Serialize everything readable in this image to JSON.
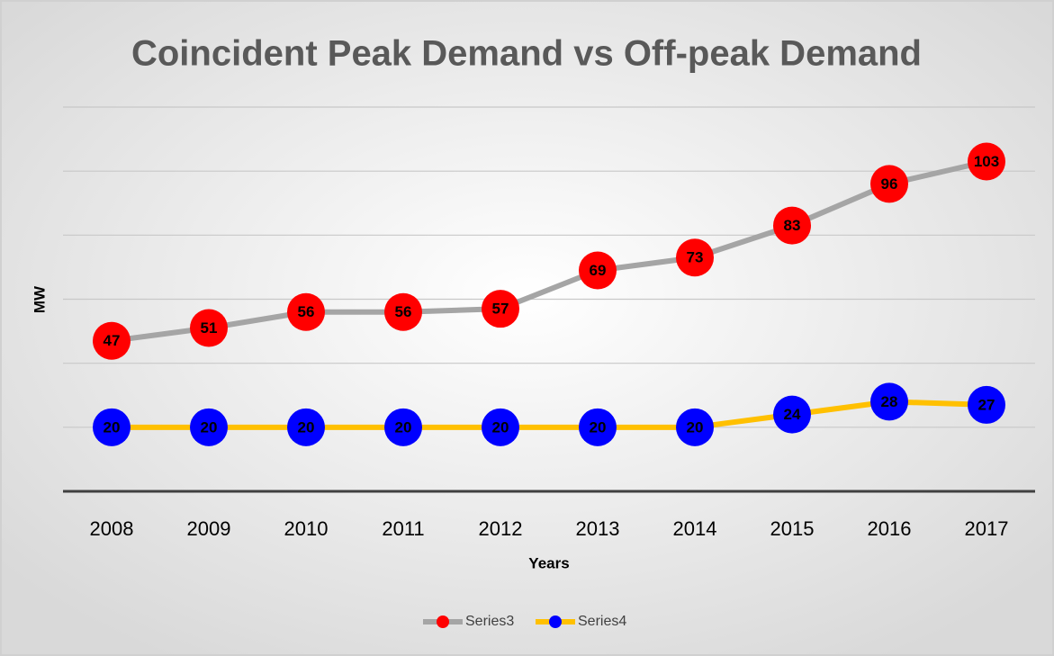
{
  "chart_data": {
    "type": "line",
    "title": "Coincident Peak Demand vs Off-peak Demand",
    "x_label": "Years",
    "y_label": "MW",
    "categories": [
      "2008",
      "2009",
      "2010",
      "2011",
      "2012",
      "2013",
      "2014",
      "2015",
      "2016",
      "2017"
    ],
    "series": [
      {
        "name": "Series3",
        "color": "#a5a5a5",
        "marker_color": "#ff0000",
        "values": [
          47,
          51,
          56,
          56,
          57,
          69,
          73,
          83,
          96,
          103
        ]
      },
      {
        "name": "Series4",
        "color": "#ffc000",
        "marker_color": "#0000ff",
        "values": [
          20,
          20,
          20,
          20,
          20,
          20,
          20,
          24,
          28,
          27
        ]
      }
    ],
    "ylim": [
      0,
      120
    ],
    "yticks": [
      0,
      20,
      40,
      60,
      80,
      100,
      120
    ],
    "grid": true,
    "legend": "bottom"
  }
}
